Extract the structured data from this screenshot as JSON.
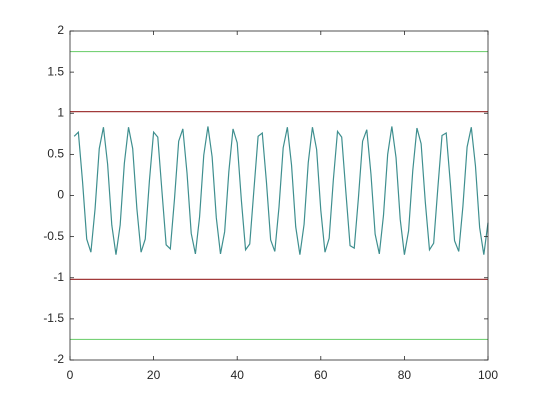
{
  "chart_data": {
    "type": "line",
    "xlim": [
      0,
      100
    ],
    "xticks": [
      0,
      20,
      40,
      60,
      80,
      100
    ],
    "ylim": [
      -2,
      2
    ],
    "yticks": [
      -2,
      -1.5,
      -1,
      -0.5,
      0,
      0.5,
      1,
      1.5,
      2
    ],
    "series": [
      {
        "color": "#3f8f8f",
        "x": [
          1,
          2,
          3,
          4,
          5,
          6,
          7,
          8,
          9,
          10,
          11,
          12,
          13,
          14,
          15,
          16,
          17,
          18,
          19,
          20,
          21,
          22,
          23,
          24,
          25,
          26,
          27,
          28,
          29,
          30,
          31,
          32,
          33,
          34,
          35,
          36,
          37,
          38,
          39,
          40,
          41,
          42,
          43,
          44,
          45,
          46,
          47,
          48,
          49,
          50,
          51,
          52,
          53,
          54,
          55,
          56,
          57,
          58,
          59,
          60,
          61,
          62,
          63,
          64,
          65,
          66,
          67,
          68,
          69,
          70,
          71,
          72,
          73,
          74,
          75,
          76,
          77,
          78,
          79,
          80,
          81,
          82,
          83,
          84,
          85,
          86,
          87,
          88,
          89,
          90,
          91,
          92,
          93,
          94,
          95,
          96,
          97,
          98,
          99,
          100
        ],
        "values": [
          0.72,
          0.77,
          0.17,
          -0.53,
          -0.69,
          -0.16,
          0.57,
          0.83,
          0.38,
          -0.36,
          -0.72,
          -0.36,
          0.39,
          0.83,
          0.57,
          -0.16,
          -0.69,
          -0.53,
          0.18,
          0.77,
          0.71,
          0.05,
          -0.6,
          -0.65,
          -0.04,
          0.66,
          0.81,
          0.27,
          -0.46,
          -0.71,
          -0.26,
          0.49,
          0.84,
          0.47,
          -0.27,
          -0.71,
          -0.44,
          0.29,
          0.81,
          0.64,
          -0.06,
          -0.66,
          -0.59,
          0.07,
          0.72,
          0.76,
          0.16,
          -0.54,
          -0.68,
          -0.14,
          0.58,
          0.83,
          0.37,
          -0.38,
          -0.72,
          -0.35,
          0.4,
          0.83,
          0.56,
          -0.18,
          -0.69,
          -0.52,
          0.19,
          0.78,
          0.71,
          0.04,
          -0.61,
          -0.64,
          -0.03,
          0.66,
          0.8,
          0.26,
          -0.47,
          -0.71,
          -0.24,
          0.5,
          0.84,
          0.46,
          -0.29,
          -0.72,
          -0.43,
          0.3,
          0.82,
          0.63,
          -0.08,
          -0.66,
          -0.58,
          0.09,
          0.73,
          0.76,
          0.14,
          -0.55,
          -0.68,
          -0.13,
          0.59,
          0.83,
          0.36,
          -0.39,
          -0.72,
          -0.33
        ]
      },
      {
        "color": "#a23b3b",
        "x": [
          0,
          100
        ],
        "values": [
          1.02,
          1.02
        ]
      },
      {
        "color": "#a23b3b",
        "x": [
          0,
          100
        ],
        "values": [
          -1.02,
          -1.02
        ]
      },
      {
        "color": "#77d177",
        "x": [
          0,
          100
        ],
        "values": [
          1.75,
          1.75
        ]
      },
      {
        "color": "#77d177",
        "x": [
          0,
          100
        ],
        "values": [
          -1.75,
          -1.75
        ]
      }
    ]
  }
}
